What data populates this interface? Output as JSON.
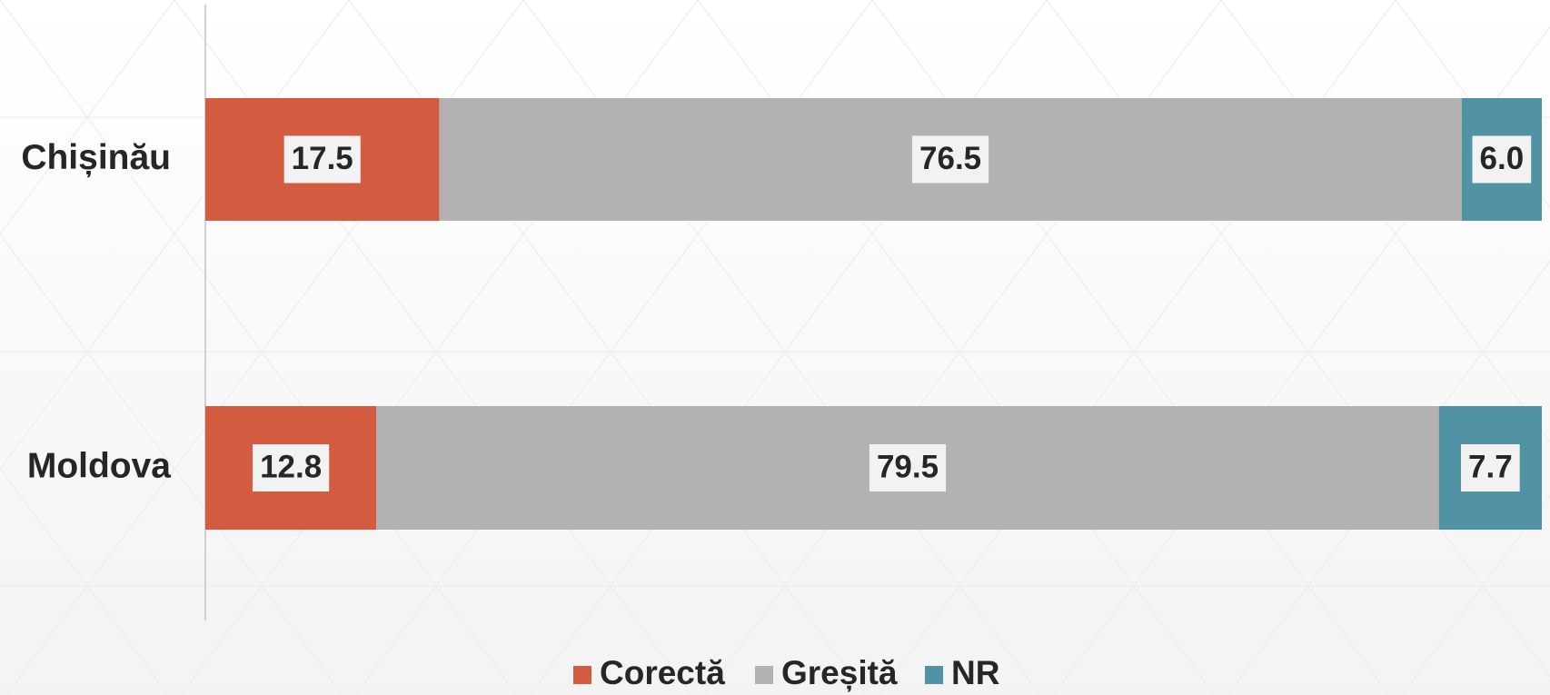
{
  "chart_data": {
    "type": "stacked_barh",
    "categories": [
      "Chișinău",
      "Moldova"
    ],
    "series": [
      {
        "name": "Corectă",
        "color": "#d35b3f",
        "values": [
          17.5,
          12.8
        ]
      },
      {
        "name": "Greșită",
        "color": "#b2b2b2",
        "values": [
          76.5,
          79.5
        ]
      },
      {
        "name": "NR",
        "color": "#5193a5",
        "values": [
          6.0,
          7.7
        ],
        "value_labels": [
          "6.0",
          "7.7"
        ]
      }
    ],
    "xlim": [
      0,
      100
    ]
  }
}
